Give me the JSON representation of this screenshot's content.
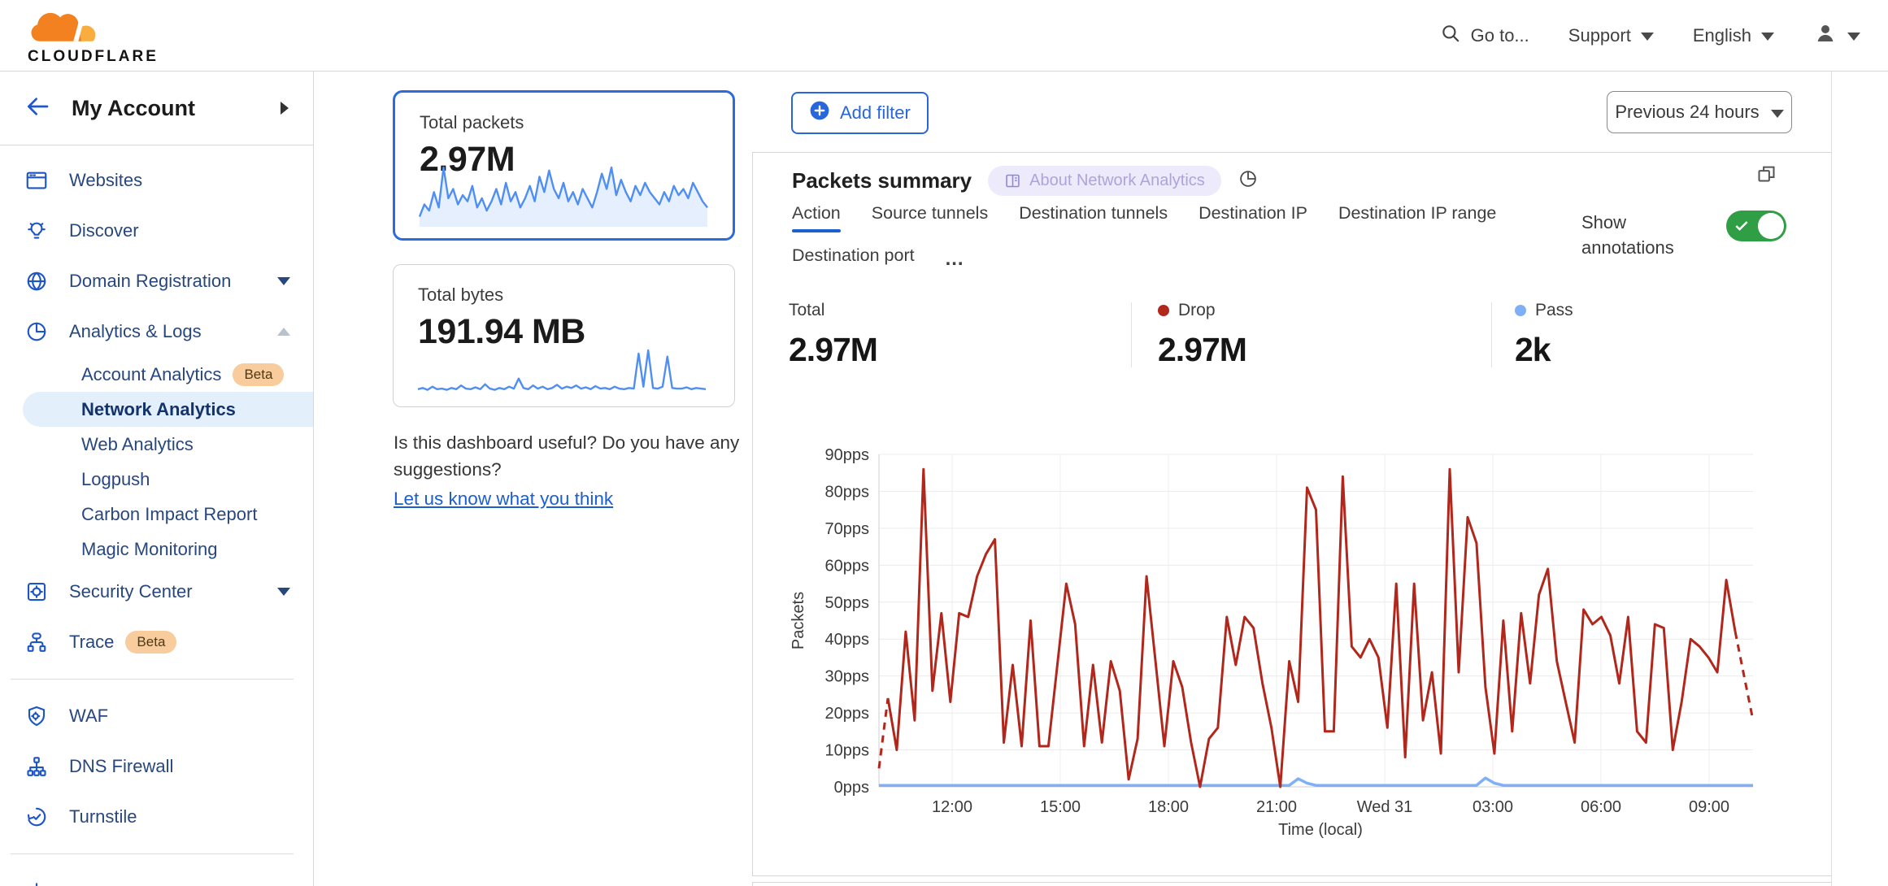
{
  "header": {
    "logo_text": "CLOUDFLARE",
    "search_placeholder": "Go to...",
    "support_label": "Support",
    "language_label": "English"
  },
  "sidebar": {
    "account_label": "My Account",
    "sections": [
      {
        "items": [
          {
            "label": "Websites",
            "icon": "browser-icon"
          },
          {
            "label": "Discover",
            "icon": "lightbulb-icon"
          },
          {
            "label": "Domain Registration",
            "icon": "globe-icon",
            "chevron": "down"
          },
          {
            "label": "Analytics & Logs",
            "icon": "pie-chart-icon",
            "chevron": "up",
            "expanded": true,
            "subitems": [
              {
                "label": "Account Analytics",
                "badge": "Beta"
              },
              {
                "label": "Network Analytics",
                "active": true
              },
              {
                "label": "Web Analytics"
              },
              {
                "label": "Logpush"
              },
              {
                "label": "Carbon Impact Report"
              },
              {
                "label": "Magic Monitoring"
              }
            ]
          },
          {
            "label": "Security Center",
            "icon": "vault-icon",
            "chevron": "down"
          },
          {
            "label": "Trace",
            "icon": "trace-icon",
            "badge": "Beta"
          }
        ]
      },
      {
        "items": [
          {
            "label": "WAF",
            "icon": "shield-gear-icon"
          },
          {
            "label": "DNS Firewall",
            "icon": "dns-tree-icon"
          },
          {
            "label": "Turnstile",
            "icon": "turnstile-icon"
          }
        ]
      },
      {
        "items": [
          {
            "label": "",
            "icon": "burst-icon"
          }
        ]
      }
    ]
  },
  "metrics": {
    "packets": {
      "title": "Total packets",
      "value": "2.97M",
      "spark": [
        15,
        35,
        25,
        55,
        30,
        95,
        45,
        60,
        35,
        50,
        40,
        65,
        30,
        45,
        25,
        40,
        60,
        35,
        70,
        40,
        55,
        30,
        45,
        65,
        40,
        80,
        55,
        90,
        60,
        45,
        70,
        40,
        55,
        35,
        60,
        45,
        30,
        55,
        85,
        60,
        95,
        50,
        75,
        55,
        40,
        65,
        50,
        70,
        55,
        45,
        35,
        55,
        40,
        65,
        50,
        60,
        45,
        70,
        55,
        40,
        30
      ]
    },
    "bytes": {
      "title": "Total bytes",
      "value": "191.94 MB",
      "spark": [
        8,
        10,
        7,
        12,
        8,
        9,
        7,
        10,
        8,
        14,
        9,
        8,
        11,
        8,
        16,
        9,
        7,
        10,
        8,
        12,
        9,
        25,
        10,
        8,
        14,
        9,
        12,
        8,
        10,
        15,
        9,
        12,
        10,
        14,
        9,
        11,
        8,
        13,
        9,
        10,
        8,
        12,
        9,
        8,
        10,
        9,
        65,
        12,
        70,
        10,
        9,
        12,
        60,
        10,
        9,
        9,
        11,
        8,
        10,
        9,
        8
      ]
    }
  },
  "feedback": {
    "question": "Is this dashboard useful? Do you have any suggestions?",
    "link": "Let us know what you think"
  },
  "toolbar": {
    "add_filter": "Add filter",
    "time_range": "Previous 24 hours"
  },
  "panel": {
    "title": "Packets summary",
    "badge": "About Network Analytics",
    "tabs": [
      "Action",
      "Source tunnels",
      "Destination tunnels",
      "Destination IP",
      "Destination IP range",
      "Destination port"
    ],
    "active_tab": 0,
    "show_annotations": "Show annotations",
    "annotations_on": true,
    "stats": [
      {
        "label": "Total",
        "value": "2.97M"
      },
      {
        "label": "Drop",
        "value": "2.97M",
        "dot": "#b2271c"
      },
      {
        "label": "Pass",
        "value": "2k",
        "dot": "#7fb0f7"
      }
    ]
  },
  "colors": {
    "accent_blue": "#2766dd",
    "drop_red": "#b2271c",
    "pass_blue": "#7fb0f7",
    "toggle_green": "#2f9e44",
    "spark_blue": "#4f8ef2",
    "active_tab_underline": "#1d5fd0"
  },
  "chart_data": {
    "type": "line",
    "title": "Packets summary",
    "xlabel": "Time (local)",
    "ylabel": "Packets",
    "ylim": [
      0,
      90
    ],
    "grid": true,
    "legend_position": "none",
    "y_ticks": [
      "0pps",
      "10pps",
      "20pps",
      "30pps",
      "40pps",
      "50pps",
      "60pps",
      "70pps",
      "80pps",
      "90pps"
    ],
    "x_ticks": [
      "12:00",
      "15:00",
      "18:00",
      "21:00",
      "Wed 31",
      "03:00",
      "06:00",
      "09:00"
    ],
    "series": [
      {
        "name": "Drop",
        "color": "#b2271c",
        "dashed_ends": true,
        "values": [
          5,
          24,
          10,
          42,
          18,
          86,
          26,
          47,
          23,
          47,
          46,
          57,
          63,
          67,
          12,
          33,
          11,
          45,
          11,
          11,
          33,
          55,
          44,
          11,
          33,
          12,
          34,
          26,
          2,
          13,
          57,
          34,
          11,
          34,
          27,
          12,
          0,
          13,
          16,
          46,
          33,
          46,
          43,
          28,
          16,
          0,
          34,
          23,
          81,
          75,
          15,
          15,
          84,
          38,
          35,
          40,
          35,
          16,
          55,
          8,
          55,
          18,
          31,
          9,
          86,
          31,
          73,
          66,
          27,
          9,
          45,
          15,
          47,
          28,
          52,
          59,
          34,
          23,
          12,
          48,
          44,
          46,
          41,
          28,
          46,
          15,
          12,
          44,
          43,
          10,
          23,
          40,
          38,
          35,
          31,
          56,
          42,
          30,
          18
        ]
      },
      {
        "name": "Pass",
        "color": "#7fb0f7",
        "values": [
          0.4,
          0.4,
          0.4,
          0.4,
          0.4,
          0.4,
          0.4,
          0.4,
          0.4,
          0.4,
          0.4,
          0.4,
          0.4,
          0.4,
          0.4,
          0.4,
          0.4,
          0.4,
          0.4,
          0.4,
          0.4,
          0.4,
          0.4,
          0.4,
          0.4,
          0.4,
          0.4,
          0.4,
          0.4,
          0.4,
          0.4,
          0.4,
          0.4,
          0.4,
          0.4,
          0.4,
          0.4,
          0.4,
          0.4,
          0.4,
          0.4,
          0.4,
          0.4,
          0.4,
          0.4,
          0.4,
          0.4,
          2.2,
          1.0,
          0.4,
          0.4,
          0.4,
          0.4,
          0.4,
          0.4,
          0.4,
          0.4,
          0.4,
          0.4,
          0.4,
          0.4,
          0.4,
          0.4,
          0.4,
          0.4,
          0.4,
          0.4,
          0.4,
          2.4,
          1.0,
          0.4,
          0.4,
          0.4,
          0.4,
          0.4,
          0.4,
          0.4,
          0.4,
          0.4,
          0.4,
          0.4,
          0.4,
          0.4,
          0.4,
          0.4,
          0.4,
          0.4,
          0.4,
          0.4,
          0.4,
          0.4,
          0.4,
          0.4,
          0.4,
          0.4,
          0.4,
          0.4,
          0.4,
          0.4
        ]
      }
    ]
  }
}
